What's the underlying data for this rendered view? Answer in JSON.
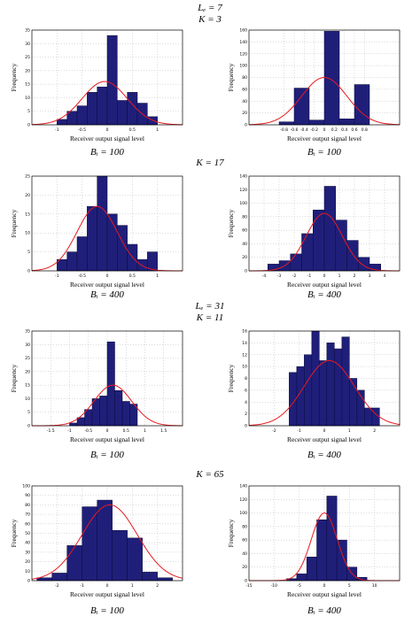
{
  "headers": {
    "lc7": "Lₑ = 7",
    "k3": "K = 3",
    "k17": "K = 17",
    "lc31": "Lₑ = 31",
    "k11": "K = 11",
    "k65": "K = 65"
  },
  "common": {
    "ylabel": "Frequency",
    "xlabel": "Receiver output signal level",
    "bar_color": "#1f1f7a",
    "curve_color": "#e8191f"
  },
  "chart_data": [
    {
      "type": "bar",
      "caption": "Bᵢ = 100",
      "xlim": [
        -1.5,
        1.5
      ],
      "ylim": [
        0,
        35
      ],
      "xticks": [
        "-1",
        "-0.5",
        "0",
        "0.5",
        "1"
      ],
      "yticks": [
        "0",
        "5",
        "10",
        "15",
        "20",
        "25",
        "30",
        "35"
      ],
      "edges": [
        -1.0,
        -0.8,
        -0.6,
        -0.4,
        -0.2,
        0.0,
        0.2,
        0.4,
        0.6,
        0.8,
        1.0
      ],
      "values": [
        2,
        5,
        7,
        12,
        14,
        33,
        9,
        12,
        8,
        3
      ],
      "fit": {
        "mean": -0.05,
        "sd": 0.45,
        "peak": 16
      }
    },
    {
      "type": "bar",
      "caption": "Bᵢ = 100",
      "xlim": [
        -1.5,
        1.5
      ],
      "ylim": [
        0,
        160
      ],
      "xticks": [
        "-0.8",
        "-0.6",
        "-0.4",
        "-0.2",
        "0",
        "0.2",
        "0.4",
        "0.6",
        "0.8"
      ],
      "yticks": [
        "0",
        "20",
        "40",
        "60",
        "80",
        "100",
        "120",
        "140",
        "160"
      ],
      "edges": [
        -0.9,
        -0.6,
        -0.3,
        0.0,
        0.3,
        0.6,
        0.9
      ],
      "values": [
        5,
        62,
        8,
        158,
        10,
        68
      ],
      "fit": {
        "mean": 0.0,
        "sd": 0.45,
        "peak": 80
      }
    },
    {
      "type": "bar",
      "caption": "Bᵢ = 400",
      "xlim": [
        -1.5,
        1.5
      ],
      "ylim": [
        0,
        25
      ],
      "xticks": [
        "-1",
        "-0.5",
        "0",
        "0.5",
        "1"
      ],
      "yticks": [
        "0",
        "5",
        "10",
        "15",
        "20",
        "25"
      ],
      "edges": [
        -1.0,
        -0.8,
        -0.6,
        -0.4,
        -0.2,
        0.0,
        0.2,
        0.4,
        0.6,
        0.8,
        1.0
      ],
      "values": [
        3,
        5,
        9,
        17,
        25,
        15,
        12,
        7,
        3,
        5
      ],
      "fit": {
        "mean": -0.2,
        "sd": 0.4,
        "peak": 17
      }
    },
    {
      "type": "bar",
      "caption": "Bᵢ = 400",
      "xlim": [
        -5,
        5
      ],
      "ylim": [
        0,
        140
      ],
      "xticks": [
        "-4",
        "-3",
        "-2",
        "-1",
        "0",
        "1",
        "2",
        "3",
        "4"
      ],
      "yticks": [
        "0",
        "20",
        "40",
        "60",
        "80",
        "100",
        "120",
        "140"
      ],
      "edges": [
        -3.75,
        -3.0,
        -2.25,
        -1.5,
        -0.75,
        0.0,
        0.75,
        1.5,
        2.25,
        3.0,
        3.75
      ],
      "values": [
        10,
        15,
        25,
        55,
        90,
        125,
        75,
        45,
        20,
        10
      ],
      "fit": {
        "mean": 0.0,
        "sd": 1.2,
        "peak": 85
      }
    },
    {
      "type": "bar",
      "caption": "Bᵢ = 100",
      "xlim": [
        -2,
        2
      ],
      "ylim": [
        0,
        35
      ],
      "xticks": [
        "-1.5",
        "-1",
        "-0.5",
        "0",
        "0.5",
        "1",
        "1.5"
      ],
      "yticks": [
        "0",
        "5",
        "10",
        "15",
        "20",
        "25",
        "30",
        "35"
      ],
      "edges": [
        -1.0,
        -0.8,
        -0.6,
        -0.4,
        -0.2,
        0.0,
        0.2,
        0.4,
        0.6,
        0.8
      ],
      "values": [
        1,
        3,
        6,
        10,
        11,
        31,
        13,
        9,
        8
      ],
      "fit": {
        "mean": 0.15,
        "sd": 0.5,
        "peak": 15
      }
    },
    {
      "type": "bar",
      "caption": "Bᵢ = 400",
      "xlim": [
        -3,
        3
      ],
      "ylim": [
        0,
        16
      ],
      "xticks": [
        "-2",
        "-1",
        "0",
        "1",
        "2"
      ],
      "yticks": [
        "0",
        "2",
        "4",
        "6",
        "8",
        "10",
        "12",
        "14",
        "16"
      ],
      "edges": [
        -1.4,
        -1.1,
        -0.8,
        -0.5,
        -0.2,
        0.1,
        0.4,
        0.7,
        1.0,
        1.3,
        1.6,
        1.9,
        2.2
      ],
      "values": [
        9,
        10,
        12,
        16,
        11,
        14,
        13,
        15,
        8,
        6,
        3,
        3
      ],
      "fit": {
        "mean": 0.2,
        "sd": 1.0,
        "peak": 11
      }
    },
    {
      "type": "bar",
      "caption": "Bᵢ = 100",
      "xlim": [
        -3,
        3
      ],
      "ylim": [
        0,
        100
      ],
      "xticks": [
        "-2",
        "-1",
        "0",
        "1",
        "2"
      ],
      "yticks": [
        "0",
        "10",
        "20",
        "30",
        "40",
        "50",
        "60",
        "70",
        "80",
        "90",
        "100"
      ],
      "edges": [
        -2.8,
        -2.2,
        -1.6,
        -1.0,
        -0.4,
        0.2,
        0.8,
        1.4,
        2.0,
        2.6
      ],
      "values": [
        3,
        8,
        37,
        78,
        85,
        53,
        45,
        9,
        3
      ],
      "fit": {
        "mean": 0.1,
        "sd": 1.1,
        "peak": 80
      }
    },
    {
      "type": "bar",
      "caption": "Bᵢ = 400",
      "xlim": [
        -15,
        15
      ],
      "ylim": [
        0,
        140
      ],
      "xticks": [
        "-15",
        "-10",
        "-5",
        "0",
        "5",
        "10"
      ],
      "yticks": [
        "0",
        "20",
        "40",
        "60",
        "80",
        "100",
        "120",
        "140"
      ],
      "edges": [
        -7.5,
        -5.5,
        -3.5,
        -1.5,
        0.5,
        2.5,
        4.5,
        6.5,
        8.5
      ],
      "values": [
        3,
        10,
        35,
        90,
        125,
        60,
        20,
        5
      ],
      "fit": {
        "mean": 0.0,
        "sd": 2.6,
        "peak": 100
      }
    }
  ]
}
